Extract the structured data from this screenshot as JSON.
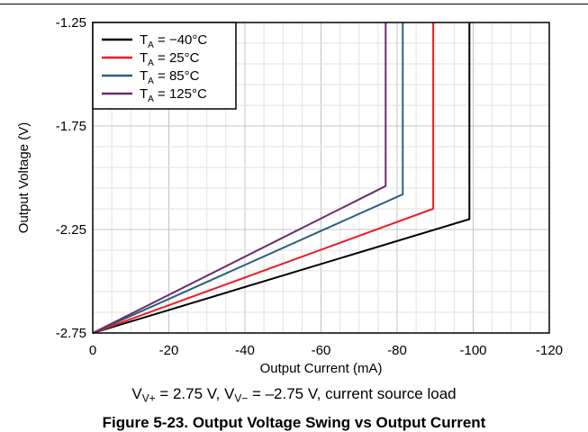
{
  "chart_data": {
    "type": "line",
    "xlabel": "Output Current (mA)",
    "ylabel": "Output Voltage (V)",
    "xlim": [
      0,
      -120
    ],
    "ylim": [
      -2.75,
      -1.25
    ],
    "x_ticks": [
      "0",
      "-20",
      "-40",
      "-60",
      "-80",
      "-100",
      "-120"
    ],
    "y_ticks": [
      "-1.25",
      "-1.75",
      "-2.25",
      "-2.75"
    ],
    "x_tick_values": [
      0,
      -20,
      -40,
      -60,
      -80,
      -100,
      -120
    ],
    "y_tick_values": [
      -1.25,
      -1.75,
      -2.25,
      -2.75
    ],
    "grid": true,
    "legend_position": "top-left",
    "series": [
      {
        "name": "T_A = −40°C",
        "label_main": "T",
        "label_sub": "A",
        "label_rest": " = −40°C",
        "color": "#000000",
        "x": [
          0,
          -99,
          -99
        ],
        "y": [
          -2.75,
          -2.2,
          -1.25
        ]
      },
      {
        "name": "T_A = 25°C",
        "label_main": "T",
        "label_sub": "A",
        "label_rest": " = 25°C",
        "color": "#ee1c25",
        "x": [
          0,
          -89.5,
          -89.5
        ],
        "y": [
          -2.75,
          -2.15,
          -1.25
        ]
      },
      {
        "name": "T_A = 85°C",
        "label_main": "T",
        "label_sub": "A",
        "label_rest": " = 85°C",
        "color": "#2c5f7c",
        "x": [
          0,
          -81.5,
          -81.5
        ],
        "y": [
          -2.75,
          -2.08,
          -1.25
        ]
      },
      {
        "name": "T_A = 125°C",
        "label_main": "T",
        "label_sub": "A",
        "label_rest": " = 125°C",
        "color": "#6b2c6b",
        "x": [
          0,
          -77,
          -77
        ],
        "y": [
          -2.75,
          -2.04,
          -1.25
        ]
      }
    ]
  },
  "condition": {
    "part1": "V",
    "sub1": "V+",
    "part2": " = 2.75 V, V",
    "sub2": "V−",
    "part3": " = –2.75 V, current source load"
  },
  "caption": "Figure 5-23. Output Voltage Swing vs Output Current"
}
